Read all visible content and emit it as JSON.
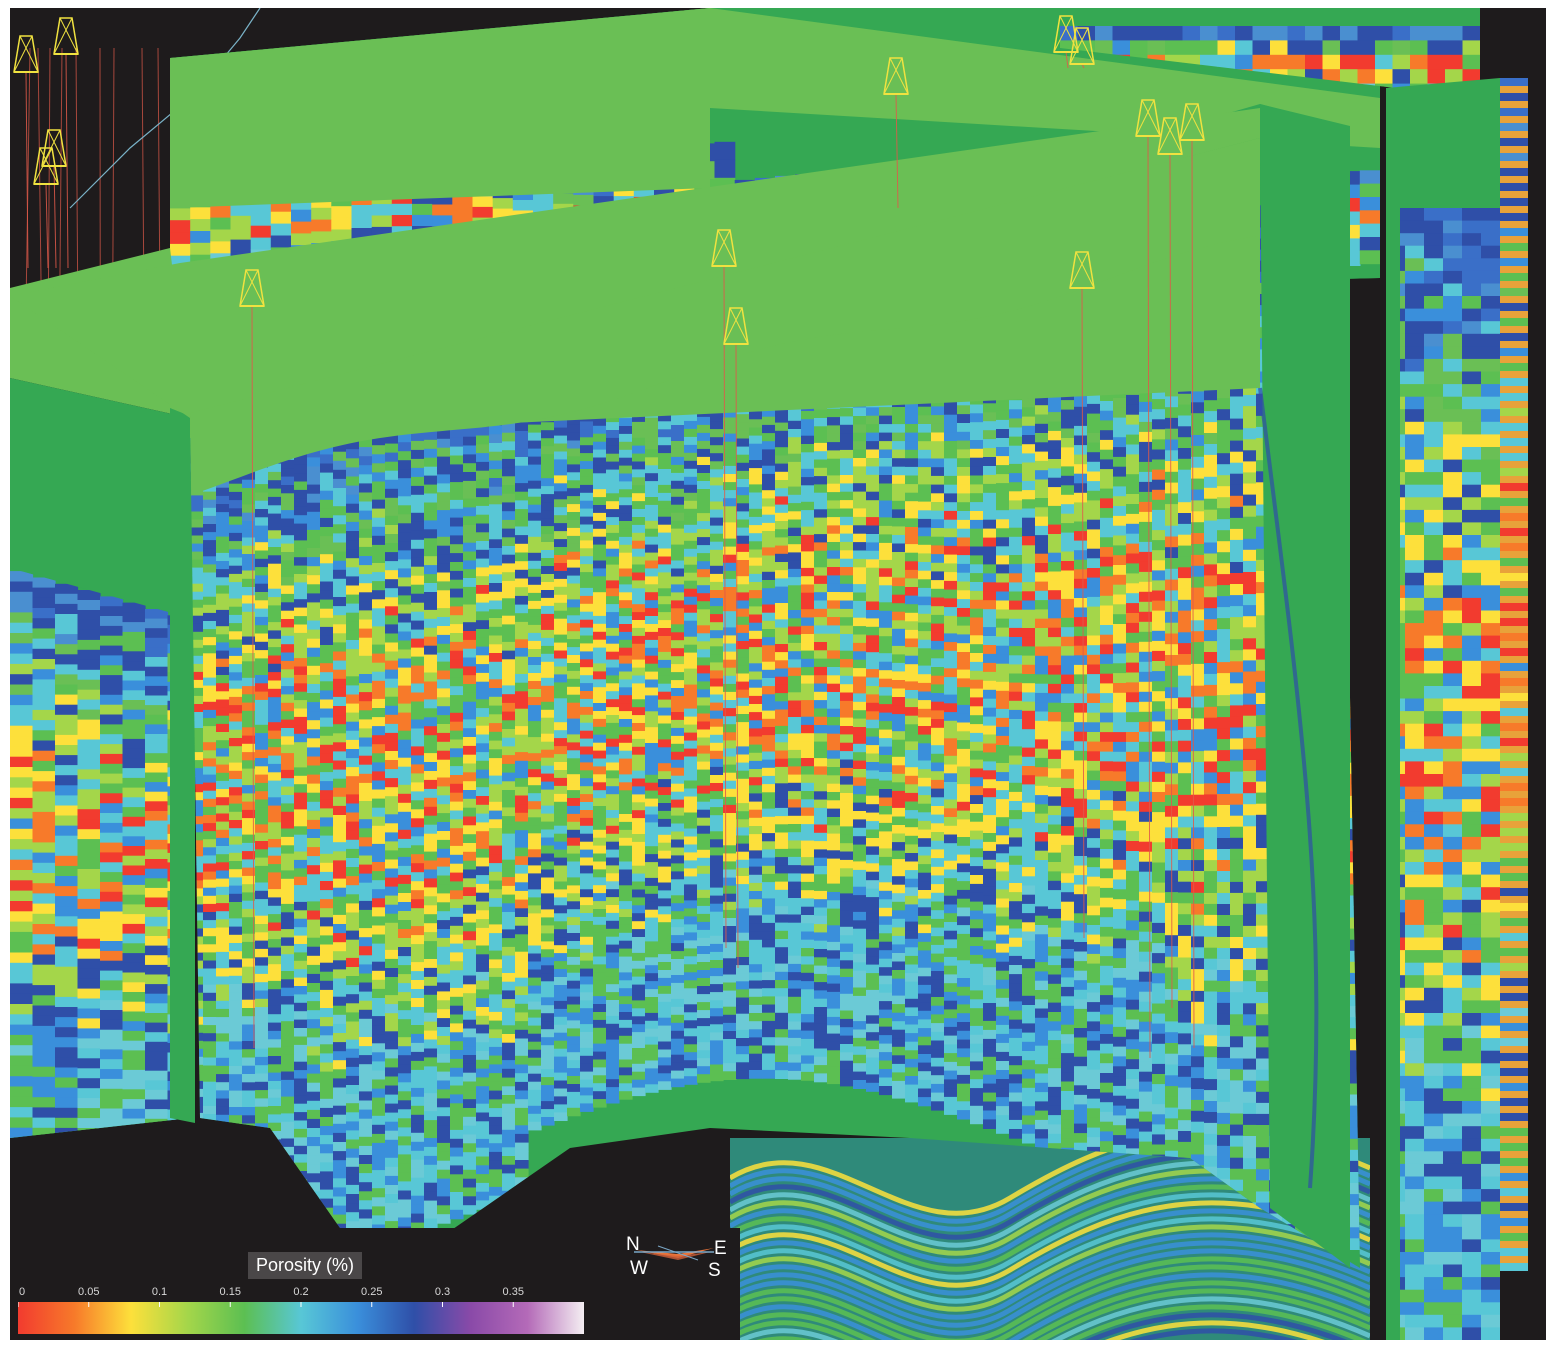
{
  "legend": {
    "title": "Porosity (%)",
    "ticks": [
      "0",
      "0.05",
      "0.1",
      "0.15",
      "0.2",
      "0.25",
      "0.3",
      "0.35"
    ],
    "range": [
      0,
      0.4
    ],
    "colors": [
      "#f23b2f",
      "#f77a2a",
      "#fde03b",
      "#a4d64a",
      "#5cbf52",
      "#58c7d6",
      "#3a8fdb",
      "#2f4fa8",
      "#8a4aa8",
      "#b46ab8",
      "#f4eef2"
    ]
  },
  "compass": {
    "north": "N",
    "south": "S",
    "east": "E",
    "west": "W"
  },
  "scene": {
    "property": "porosity",
    "background": "#1e1b1c",
    "top_surface_color": "#6abf55",
    "side_surface_color": "#35a853",
    "well_marker_color": "#f0e240",
    "well_trace_color": "#e05a4a",
    "well_count": 14
  }
}
